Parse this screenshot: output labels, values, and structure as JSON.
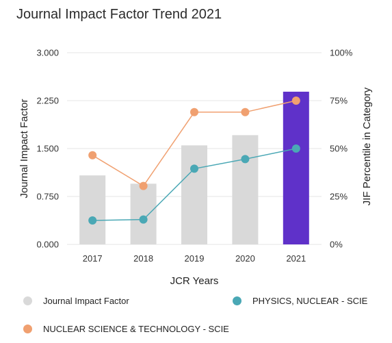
{
  "title": "Journal Impact Factor Trend 2021",
  "chart_data": {
    "type": "bar",
    "categories": [
      "2017",
      "2018",
      "2019",
      "2020",
      "2021"
    ],
    "xlabel": "JCR Years",
    "ylabel": "Journal Impact Factor",
    "y2label": "JIF Percentile in Category",
    "ylim": [
      0,
      3
    ],
    "y2lim": [
      0,
      100
    ],
    "yticks": [
      "0.000",
      "0.750",
      "1.500",
      "2.250",
      "3.000"
    ],
    "y2ticks": [
      "0%",
      "25%",
      "50%",
      "75%",
      "100%"
    ],
    "grid": true,
    "series": [
      {
        "name": "Journal Impact Factor",
        "type": "bar",
        "axis": "left",
        "values": [
          1.08,
          0.95,
          1.55,
          1.71,
          2.39
        ],
        "color": "#d9d9d9",
        "highlight_color": "#5f31c9",
        "highlight_index": 4
      },
      {
        "name": "PHYSICS, NUCLEAR - SCIE",
        "type": "line",
        "axis": "right",
        "values": [
          12.5,
          13.0,
          39.5,
          44.5,
          50.0
        ],
        "color": "#4aa8b5"
      },
      {
        "name": "NUCLEAR SCIENCE & TECHNOLOGY - SCIE",
        "type": "line",
        "axis": "right",
        "values": [
          46.5,
          30.5,
          69.0,
          69.0,
          75.0
        ],
        "color": "#f0a070"
      }
    ],
    "legend": "bottom"
  }
}
